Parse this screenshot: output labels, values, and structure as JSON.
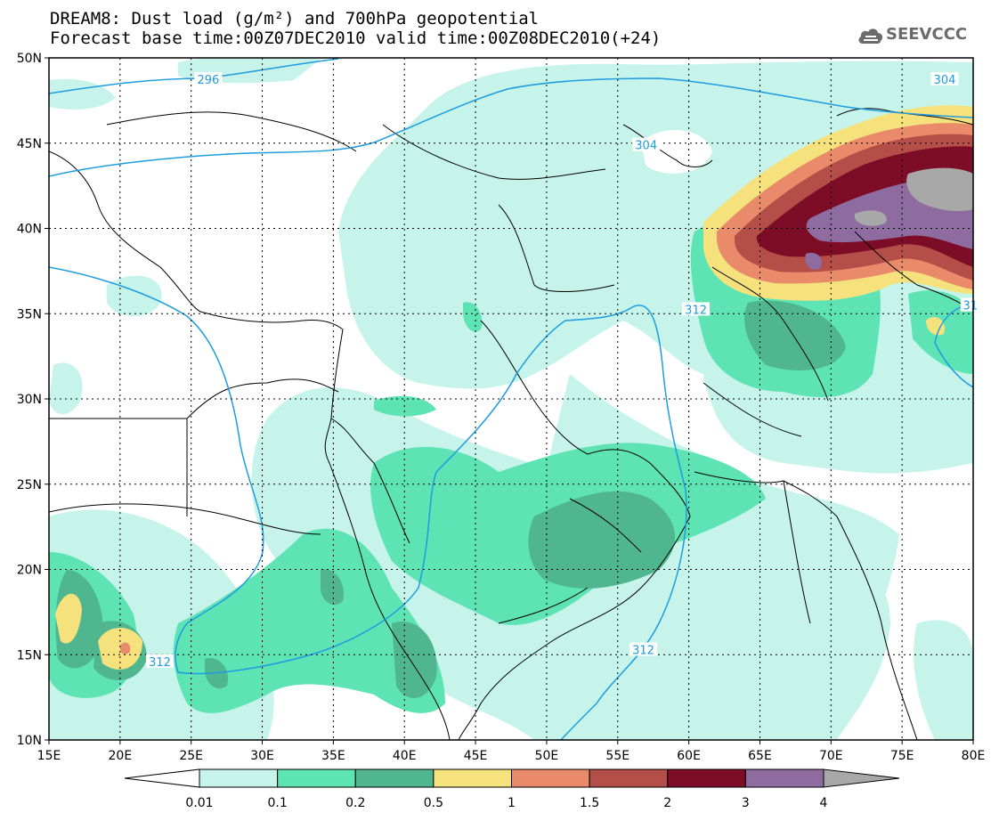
{
  "title": {
    "line1": "DREAM8: Dust load (g/m²) and 700hPa geopotential",
    "line2": "Forecast base time:00Z07DEC2010 valid time:00Z08DEC2010(+24)"
  },
  "logo": {
    "text": "SEEVCCC",
    "icon": "cloud-icon"
  },
  "map": {
    "lon_range": [
      15,
      80
    ],
    "lat_range": [
      10,
      50
    ],
    "x_ticks": [
      "15E",
      "20E",
      "25E",
      "30E",
      "35E",
      "40E",
      "45E",
      "50E",
      "55E",
      "60E",
      "65E",
      "70E",
      "75E",
      "80E"
    ],
    "y_ticks": [
      "10N",
      "15N",
      "20N",
      "25N",
      "30N",
      "35N",
      "40N",
      "45N",
      "50N"
    ],
    "gridlines": true,
    "contour_labels": [
      "296",
      "304",
      "304",
      "312",
      "312",
      "312",
      "31"
    ]
  },
  "colorbar": {
    "levels": [
      "0.01",
      "0.1",
      "0.2",
      "0.5",
      "1",
      "1.5",
      "2",
      "3",
      "4"
    ],
    "colors": [
      "#ffffff",
      "#c6f4ea",
      "#5ee3b4",
      "#4fb68f",
      "#f6e27c",
      "#e98a6a",
      "#b34f48",
      "#7d0c26",
      "#8e6ca0",
      "#a8a8a8"
    ]
  }
}
